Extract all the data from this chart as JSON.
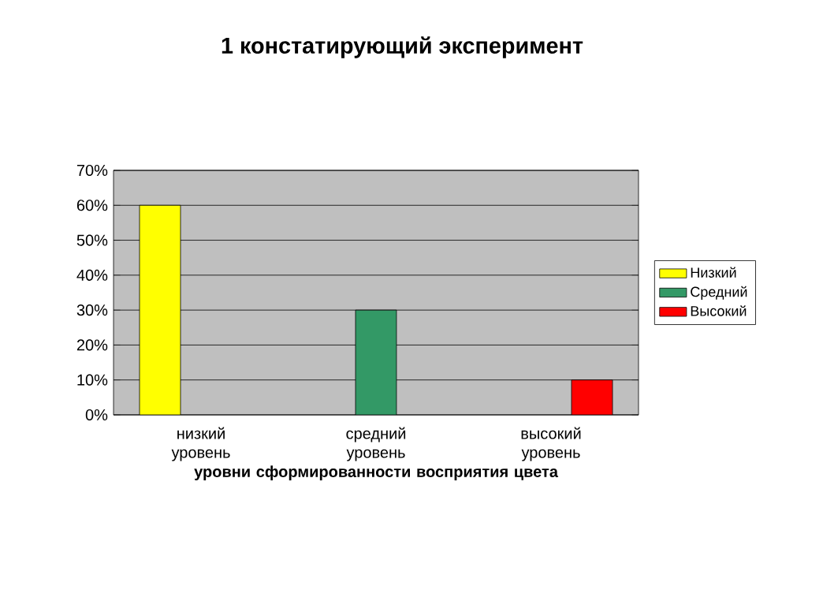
{
  "chart_data": {
    "type": "bar",
    "title": "1 констатирующий эксперимент",
    "xlabel": "уровни сформированности восприятия цвета",
    "categories": [
      "низкий уровень",
      "средний уровень",
      "высокий уровень"
    ],
    "series": [
      {
        "name": "Низкий",
        "color": "#ffff00",
        "values": [
          60,
          null,
          null
        ]
      },
      {
        "name": "Средний",
        "color": "#339966",
        "values": [
          null,
          30,
          null
        ]
      },
      {
        "name": "Высокий",
        "color": "#ff0000",
        "values": [
          null,
          null,
          10
        ]
      }
    ],
    "ylim": [
      0,
      70
    ],
    "yticks": [
      {
        "value": 0,
        "label": "0%"
      },
      {
        "value": 10,
        "label": "10%"
      },
      {
        "value": 20,
        "label": "20%"
      },
      {
        "value": 30,
        "label": "30%"
      },
      {
        "value": 40,
        "label": "40%"
      },
      {
        "value": 50,
        "label": "50%"
      },
      {
        "value": 60,
        "label": "60%"
      },
      {
        "value": 70,
        "label": "70%"
      }
    ],
    "grid": "y",
    "legend": "right"
  }
}
